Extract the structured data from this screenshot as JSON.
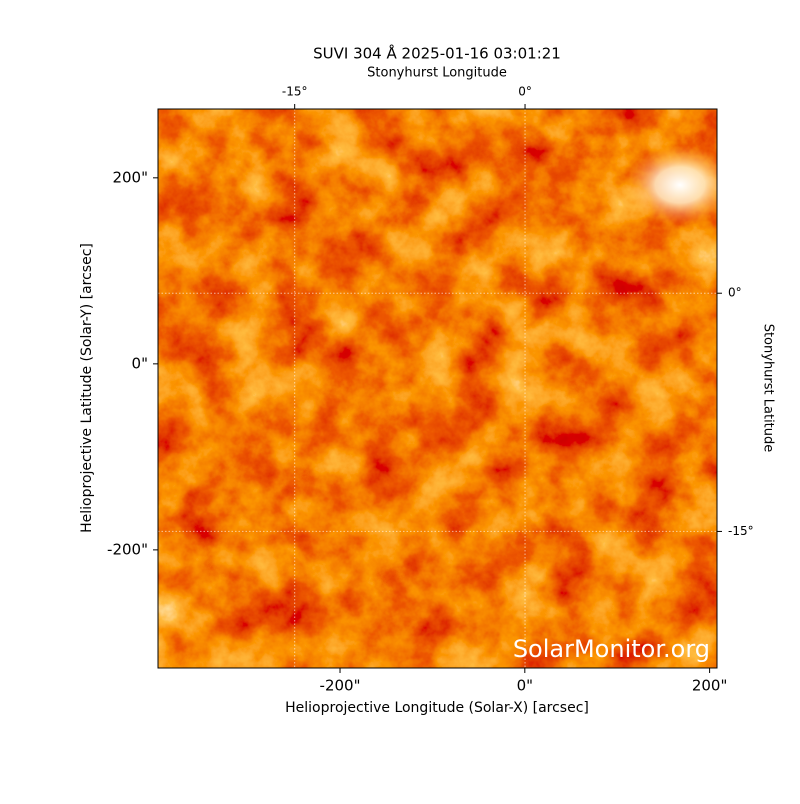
{
  "chart_data": {
    "type": "image",
    "title": "SUVI 304 Å 2025-01-16 03:01:21",
    "xlabel": "Helioprojective Longitude (Solar-X) [arcsec]",
    "ylabel": "Helioprojective Latitude (Solar-Y) [arcsec]",
    "x2label": "Stonyhurst Longitude",
    "y2label": "Stonyhurst Latitude",
    "watermark": "SolarMonitor.org",
    "xlim": [
      -397,
      208
    ],
    "ylim": [
      -327,
      274
    ],
    "xticks": [
      {
        "value": -200,
        "label": "-200\""
      },
      {
        "value": 0,
        "label": "0\""
      },
      {
        "value": 200,
        "label": "200\""
      }
    ],
    "yticks": [
      {
        "value": -200,
        "label": "-200\""
      },
      {
        "value": 0,
        "label": "0\""
      },
      {
        "value": 200,
        "label": "200\""
      }
    ],
    "x2lim": [
      -23.9,
      12.5
    ],
    "x2ticks": [
      {
        "value": -15,
        "label": "-15°"
      },
      {
        "value": 0,
        "label": "0°"
      }
    ],
    "y2lim": [
      -23.6,
      11.6
    ],
    "y2ticks": [
      {
        "value": 0,
        "label": "0°"
      },
      {
        "value": -15,
        "label": "-15°"
      }
    ],
    "grid": true
  }
}
